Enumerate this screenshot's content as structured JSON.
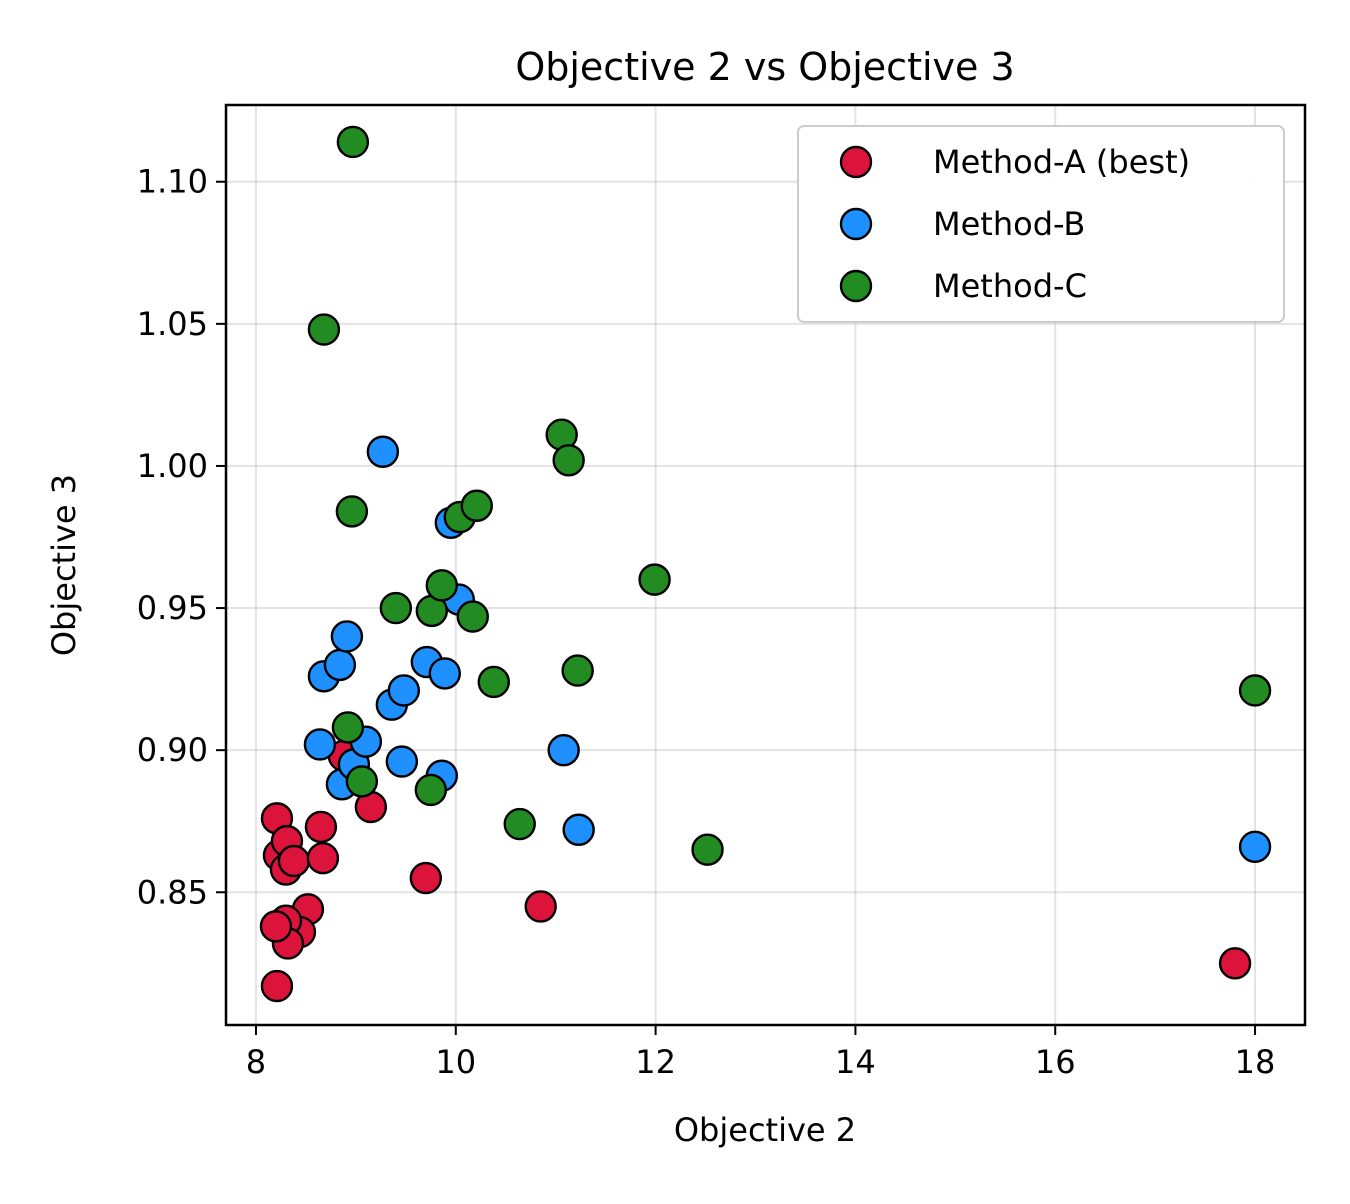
{
  "chart_data": {
    "type": "scatter",
    "title": "Objective 2 vs Objective 3",
    "xlabel": "Objective 2",
    "ylabel": "Objective 3",
    "xlim": [
      7.7,
      18.5
    ],
    "ylim": [
      0.8033,
      1.127
    ],
    "xticks": [
      8,
      10,
      12,
      14,
      16,
      18
    ],
    "xtick_labels": [
      "8",
      "10",
      "12",
      "14",
      "16",
      "18"
    ],
    "yticks": [
      0.85,
      0.9,
      0.95,
      1.0,
      1.05,
      1.1
    ],
    "ytick_labels": [
      "0.85",
      "0.90",
      "0.95",
      "1.00",
      "1.05",
      "1.10"
    ],
    "grid": true,
    "legend_position": "top-right",
    "series": [
      {
        "name": "Method-A (best)",
        "color": "#dc143c",
        "points": [
          {
            "x": 8.21,
            "y": 0.876
          },
          {
            "x": 8.23,
            "y": 0.863
          },
          {
            "x": 8.31,
            "y": 0.868
          },
          {
            "x": 8.3,
            "y": 0.858
          },
          {
            "x": 8.38,
            "y": 0.861
          },
          {
            "x": 8.65,
            "y": 0.873
          },
          {
            "x": 8.67,
            "y": 0.862
          },
          {
            "x": 8.88,
            "y": 0.898
          },
          {
            "x": 9.15,
            "y": 0.88
          },
          {
            "x": 8.52,
            "y": 0.844
          },
          {
            "x": 8.44,
            "y": 0.836
          },
          {
            "x": 8.3,
            "y": 0.84
          },
          {
            "x": 8.32,
            "y": 0.832
          },
          {
            "x": 8.2,
            "y": 0.838
          },
          {
            "x": 8.21,
            "y": 0.817
          },
          {
            "x": 9.7,
            "y": 0.855
          },
          {
            "x": 10.85,
            "y": 0.845
          },
          {
            "x": 17.8,
            "y": 0.825
          }
        ]
      },
      {
        "name": "Method-B",
        "color": "#1e90ff",
        "points": [
          {
            "x": 8.64,
            "y": 0.902
          },
          {
            "x": 8.68,
            "y": 0.926
          },
          {
            "x": 8.84,
            "y": 0.93
          },
          {
            "x": 8.91,
            "y": 0.94
          },
          {
            "x": 8.86,
            "y": 0.888
          },
          {
            "x": 8.98,
            "y": 0.895
          },
          {
            "x": 9.1,
            "y": 0.903
          },
          {
            "x": 9.27,
            "y": 1.005
          },
          {
            "x": 9.36,
            "y": 0.916
          },
          {
            "x": 9.48,
            "y": 0.921
          },
          {
            "x": 9.46,
            "y": 0.896
          },
          {
            "x": 9.71,
            "y": 0.931
          },
          {
            "x": 9.86,
            "y": 0.891
          },
          {
            "x": 9.89,
            "y": 0.927
          },
          {
            "x": 9.95,
            "y": 0.98
          },
          {
            "x": 10.03,
            "y": 0.953
          },
          {
            "x": 11.08,
            "y": 0.9
          },
          {
            "x": 11.23,
            "y": 0.872
          },
          {
            "x": 18.0,
            "y": 0.866
          }
        ]
      },
      {
        "name": "Method-C",
        "color": "#228b22",
        "points": [
          {
            "x": 8.97,
            "y": 1.114
          },
          {
            "x": 8.68,
            "y": 1.048
          },
          {
            "x": 8.96,
            "y": 0.984
          },
          {
            "x": 8.92,
            "y": 0.908
          },
          {
            "x": 9.06,
            "y": 0.889
          },
          {
            "x": 9.4,
            "y": 0.95
          },
          {
            "x": 9.76,
            "y": 0.949
          },
          {
            "x": 9.86,
            "y": 0.958
          },
          {
            "x": 9.75,
            "y": 0.886
          },
          {
            "x": 10.04,
            "y": 0.982
          },
          {
            "x": 10.21,
            "y": 0.986
          },
          {
            "x": 10.17,
            "y": 0.947
          },
          {
            "x": 10.38,
            "y": 0.924
          },
          {
            "x": 10.64,
            "y": 0.874
          },
          {
            "x": 11.06,
            "y": 1.011
          },
          {
            "x": 11.13,
            "y": 1.002
          },
          {
            "x": 11.22,
            "y": 0.928
          },
          {
            "x": 11.99,
            "y": 0.96
          },
          {
            "x": 12.52,
            "y": 0.865
          },
          {
            "x": 18.0,
            "y": 0.921
          }
        ]
      }
    ]
  }
}
